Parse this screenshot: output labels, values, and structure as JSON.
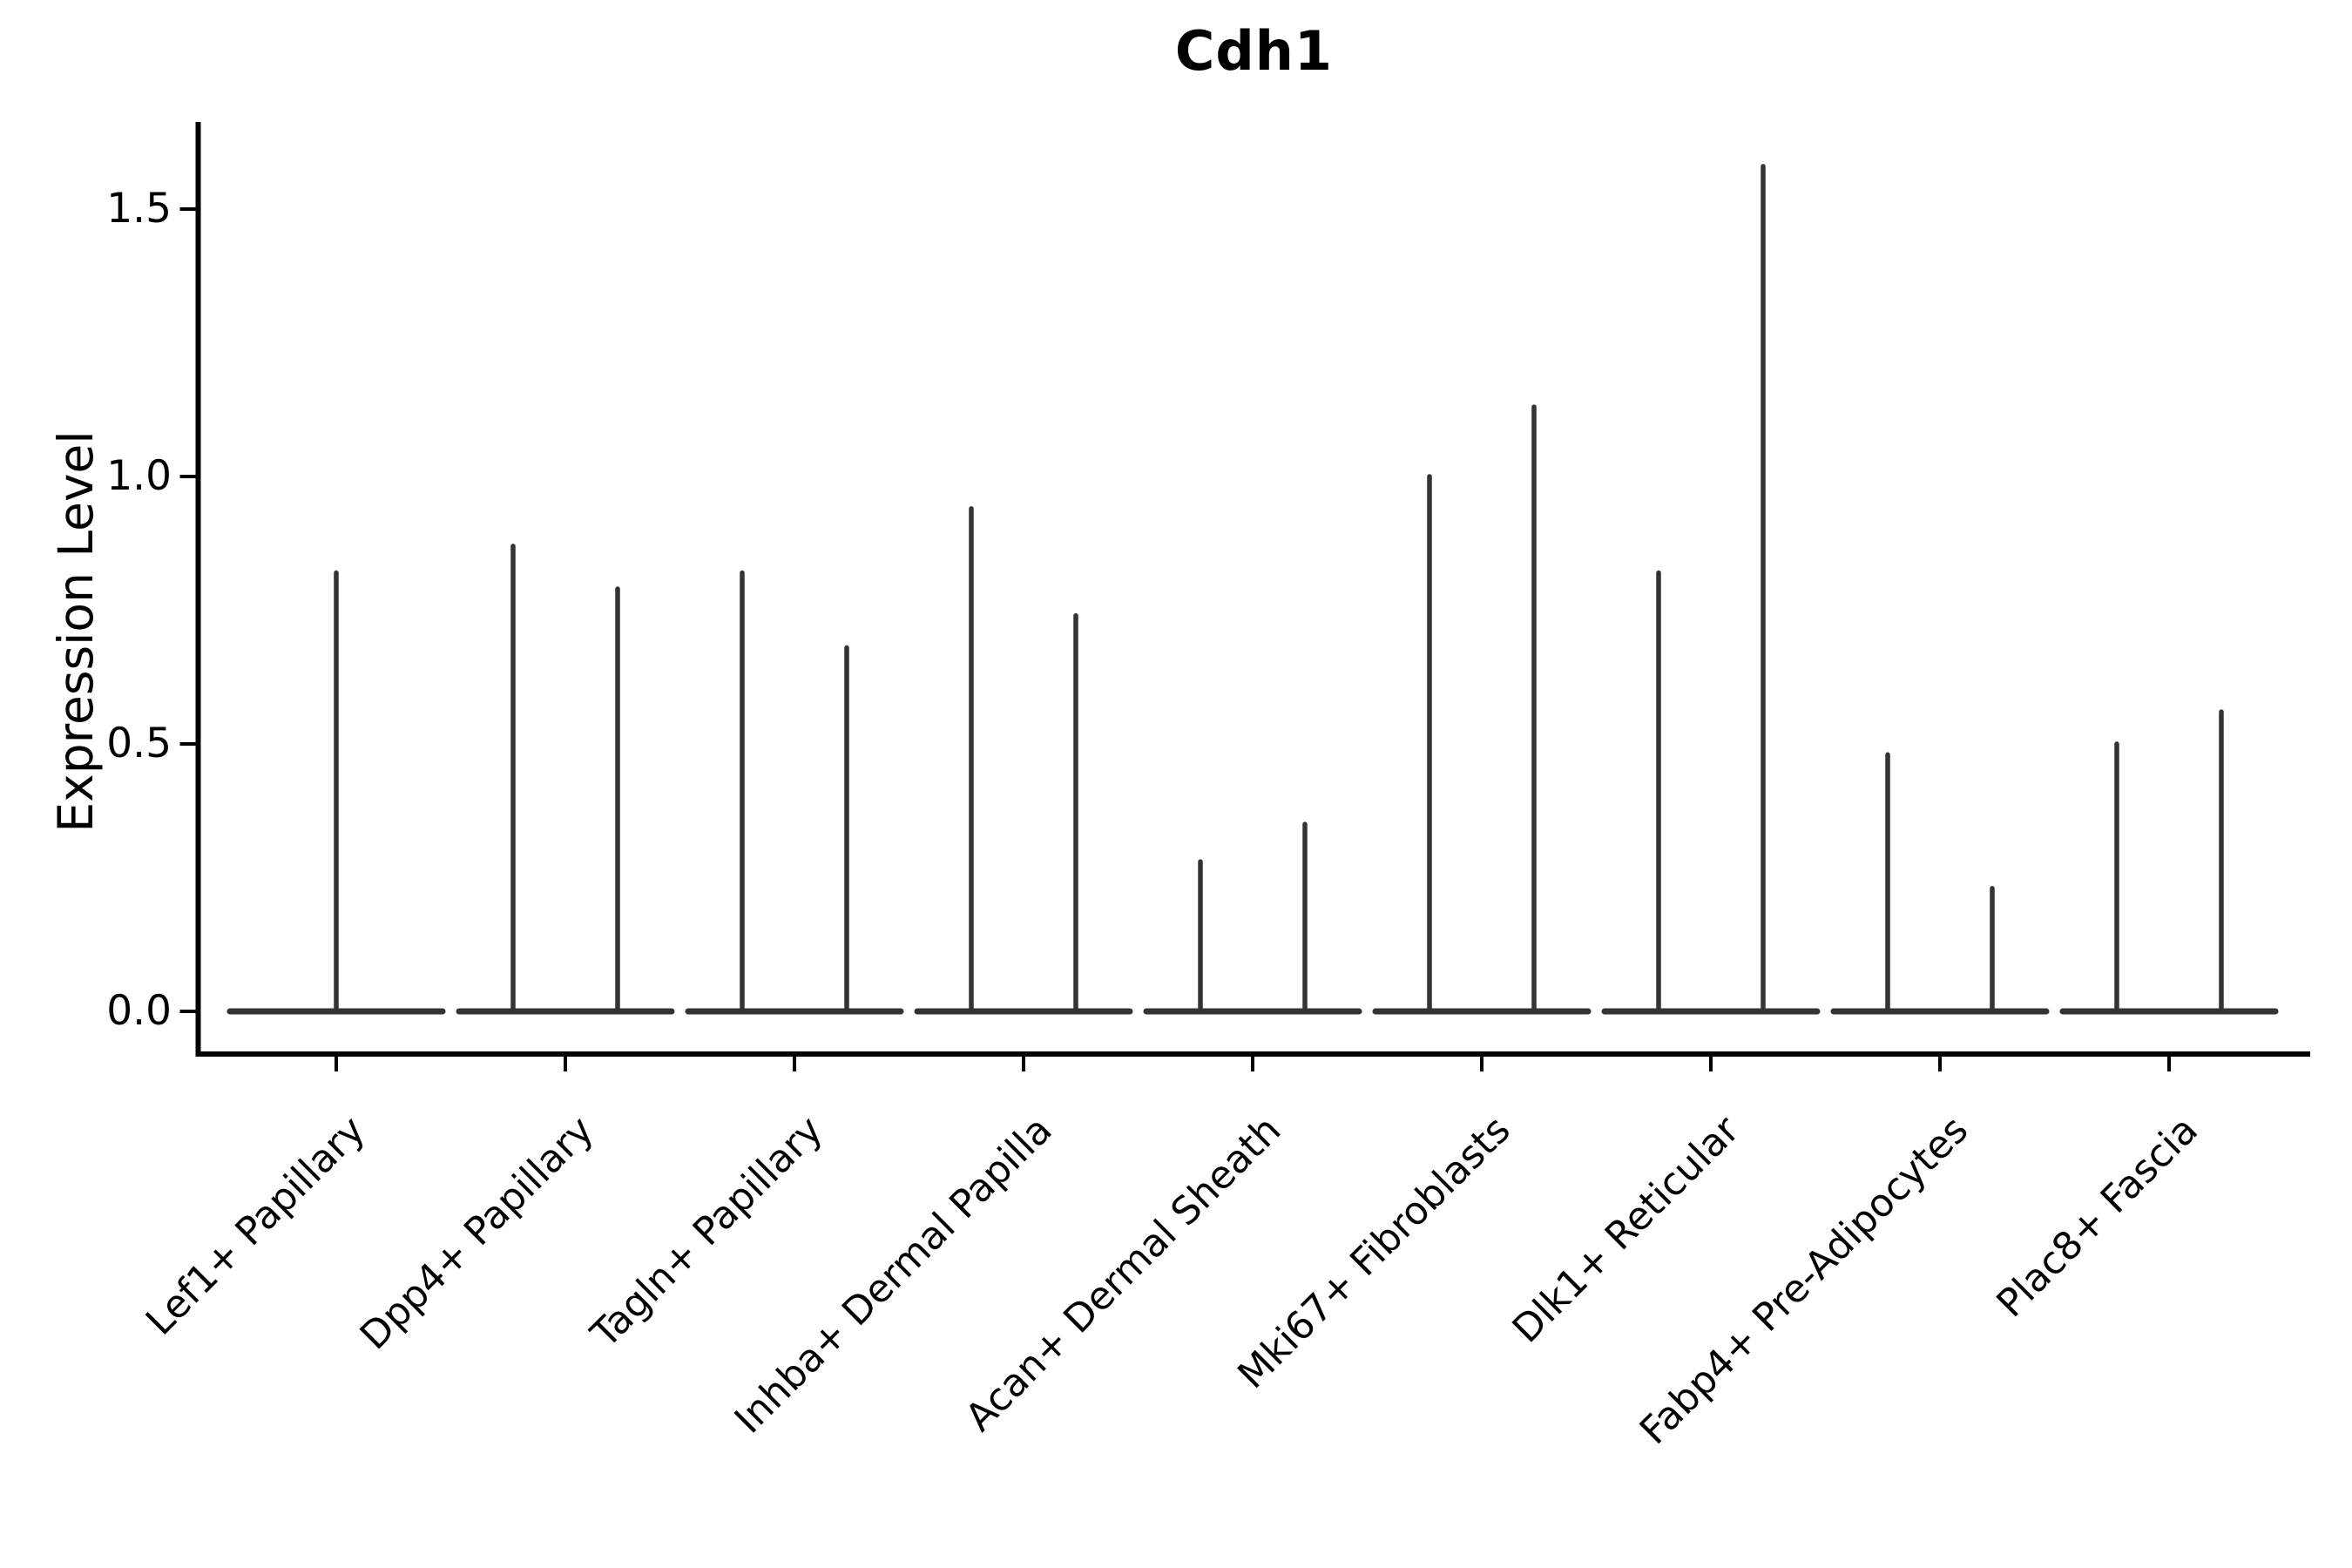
{
  "figure": {
    "background": "#ffffff"
  },
  "chart_data": {
    "type": "violin",
    "title": "Cdh1",
    "xlabel": "",
    "ylabel": "Expression Level",
    "ylim": [
      0,
      1.66
    ],
    "yticks": [
      "0.0",
      "0.5",
      "1.0",
      "1.5"
    ],
    "ytick_values": [
      0.0,
      0.5,
      1.0,
      1.5
    ],
    "grid": false,
    "legend": false,
    "baseline_value": 0.0,
    "violin_shape_note": "each violin collapses to a flat base line at expression 0 with a thin vertical spike up to its maximum expression value",
    "categories": [
      "Lef1+ Papillary",
      "Dpp4+ Papillary",
      "Tagln+ Papillary",
      "Inhba+ Dermal Papilla",
      "Acan+ Dermal Sheath",
      "Mki67+ Fibroblasts",
      "Dlk1+ Reticular",
      "Fabp4+ Pre-Adipocytes",
      "Plac8+ Fascia"
    ],
    "series": [
      {
        "category": "Lef1+ Papillary",
        "spike_maxima": [
          0.82
        ]
      },
      {
        "category": "Dpp4+ Papillary",
        "spike_maxima": [
          0.87,
          0.79
        ]
      },
      {
        "category": "Tagln+ Papillary",
        "spike_maxima": [
          0.82,
          0.68
        ]
      },
      {
        "category": "Inhba+ Dermal Papilla",
        "spike_maxima": [
          0.94,
          0.74
        ]
      },
      {
        "category": "Acan+ Dermal Sheath",
        "spike_maxima": [
          0.28,
          0.35
        ]
      },
      {
        "category": "Mki67+ Fibroblasts",
        "spike_maxima": [
          1.0,
          1.13
        ]
      },
      {
        "category": "Dlk1+ Reticular",
        "spike_maxima": [
          0.82,
          1.58
        ]
      },
      {
        "category": "Fabp4+ Pre-Adipocytes",
        "spike_maxima": [
          0.48,
          0.23
        ]
      },
      {
        "category": "Plac8+ Fascia",
        "spike_maxima": [
          0.5,
          0.56
        ]
      }
    ],
    "colors": {
      "violin_stroke": "#333333",
      "axis": "#000000",
      "text": "#000000"
    }
  }
}
